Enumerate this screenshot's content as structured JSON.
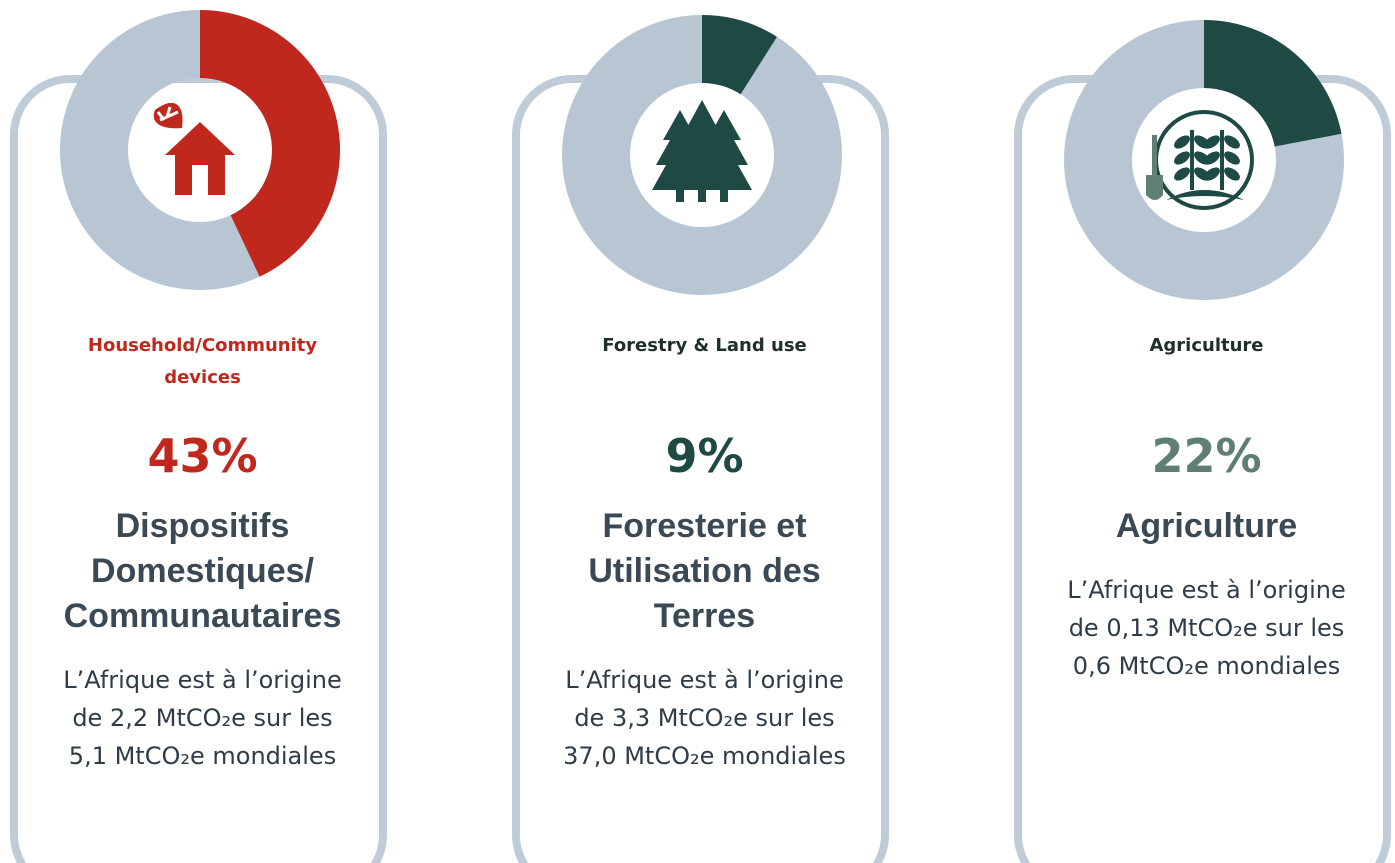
{
  "chart_data": [
    {
      "type": "donut",
      "label": "Household/Community devices",
      "values": [
        43
      ],
      "value_labels": [
        "43%"
      ],
      "color": "#c0281e",
      "label_color": "#c0281e",
      "value_color": "#c0281e",
      "icon": "house",
      "heading": "Dispositifs Domestiques/ Communautaires",
      "description": "L’Afrique est à l’origine de 2,2 MtCO₂e sur les 5,1 MtCO₂e mondiales"
    },
    {
      "type": "donut",
      "label": "Forestry & Land use",
      "values": [
        9
      ],
      "value_labels": [
        "9%"
      ],
      "color": "#1f4a44",
      "label_color": "#1f2f2c",
      "value_color": "#1f4a44",
      "icon": "trees",
      "heading": "Foresterie et Utilisation des Terres",
      "description": "L’Afrique est à l’origine de 3,3 MtCO₂e sur les 37,0 MtCO₂e mondiales"
    },
    {
      "type": "donut",
      "label": "Agriculture",
      "values": [
        22
      ],
      "value_labels": [
        "22%"
      ],
      "color": "#1f4a44",
      "label_color": "#1f2f2c",
      "value_color": "#5f7f74",
      "icon": "plants",
      "heading": "Agriculture",
      "description": "L’Afrique est à l’origine de 0,13 MtCO₂e sur les 0,6 MtCO₂e mondiales"
    }
  ]
}
